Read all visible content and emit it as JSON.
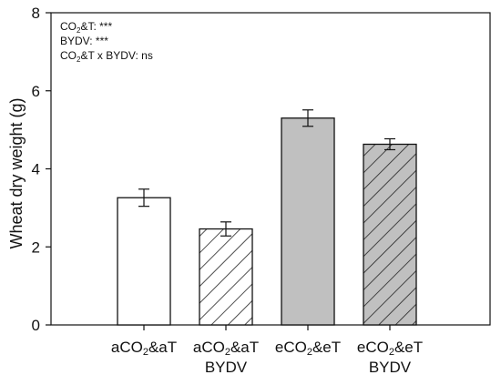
{
  "chart_data": {
    "type": "bar",
    "ylabel": "Wheat dry weight (g)",
    "ylim": [
      0,
      8
    ],
    "yticks": [
      "0",
      "2",
      "4",
      "6",
      "8"
    ],
    "grid": false,
    "categories": [
      {
        "lines": [
          [
            {
              "t": "aCO"
            },
            {
              "t": "2",
              "sub": true
            },
            {
              "t": "&aT"
            }
          ]
        ]
      },
      {
        "lines": [
          [
            {
              "t": "aCO"
            },
            {
              "t": "2",
              "sub": true
            },
            {
              "t": "&aT"
            }
          ],
          [
            {
              "t": "BYDV"
            }
          ]
        ]
      },
      {
        "lines": [
          [
            {
              "t": "eCO"
            },
            {
              "t": "2",
              "sub": true
            },
            {
              "t": "&eT"
            }
          ]
        ]
      },
      {
        "lines": [
          [
            {
              "t": "eCO"
            },
            {
              "t": "2",
              "sub": true
            },
            {
              "t": "&eT"
            }
          ],
          [
            {
              "t": "BYDV"
            }
          ]
        ]
      }
    ],
    "values": [
      3.26,
      2.46,
      5.3,
      4.63
    ],
    "errors": [
      0.22,
      0.18,
      0.21,
      0.14
    ],
    "fills": [
      "#ffffff",
      "#ffffff",
      "#c0c0c0",
      "#c0c0c0"
    ],
    "hatched": [
      false,
      true,
      false,
      true
    ],
    "annotations": [
      [
        {
          "t": "CO"
        },
        {
          "t": "2",
          "sub": true
        },
        {
          "t": "&T: ***"
        }
      ],
      [
        {
          "t": "BYDV: ***"
        }
      ],
      [
        {
          "t": "CO"
        },
        {
          "t": "2",
          "sub": true
        },
        {
          "t": "&T x BYDV: ns"
        }
      ]
    ]
  }
}
